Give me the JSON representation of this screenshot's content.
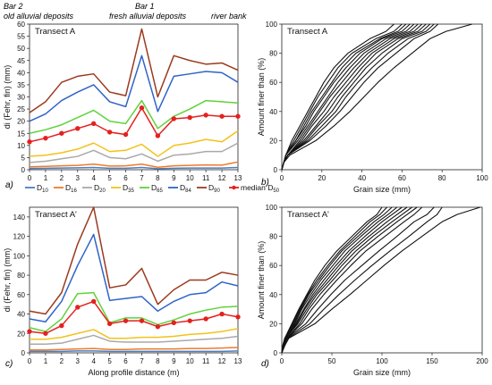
{
  "figure": {
    "header": {
      "bar2": "Bar 2",
      "bar1": "Bar 1",
      "old_deposits": "old alluvial deposits",
      "fresh_deposits": "fresh alluvial deposits",
      "river_bank": "river bank"
    },
    "panel_letters": [
      "a)",
      "b)",
      "c)",
      "d)"
    ]
  },
  "legend": {
    "items": [
      {
        "base": "D",
        "sub": "10",
        "color": "#4a7fc0"
      },
      {
        "base": "D",
        "sub": "16",
        "color": "#f07a2a"
      },
      {
        "base": "D",
        "sub": "20",
        "color": "#a9a9a9"
      },
      {
        "base": "D",
        "sub": "35",
        "color": "#f2c21b"
      },
      {
        "base": "D",
        "sub": "65",
        "color": "#5fd23a"
      },
      {
        "base": "D",
        "sub": "84",
        "color": "#2f64c8"
      },
      {
        "base": "D",
        "sub": "90",
        "color": "#9b3a1e"
      },
      {
        "base": "median D",
        "sub": "50",
        "color": "#e5201f"
      }
    ]
  },
  "chart_data": [
    {
      "type": "line",
      "title": "Transect A",
      "ylabel": "di (Fehr, fin) (mm)",
      "xlabel": "",
      "x": [
        0,
        1,
        2,
        3,
        4,
        5,
        6,
        7,
        8,
        9,
        10,
        11,
        12,
        13
      ],
      "xlim": [
        0,
        13
      ],
      "ylim": [
        0,
        60
      ],
      "yticks": [
        0,
        5,
        10,
        15,
        20,
        25,
        30,
        35,
        40,
        45,
        50,
        55,
        60
      ],
      "series": [
        {
          "name": "D10",
          "color": "#4a7fc0",
          "values": [
            0.5,
            0.6,
            0.7,
            0.8,
            0.9,
            0.6,
            0.6,
            0.9,
            0.4,
            0.6,
            0.7,
            0.7,
            0.7,
            0.9
          ]
        },
        {
          "name": "D16",
          "color": "#f07a2a",
          "values": [
            1.2,
            1.4,
            1.6,
            1.8,
            2.3,
            1.5,
            1.6,
            2.3,
            1.0,
            1.6,
            1.8,
            2.0,
            1.9,
            3.2
          ]
        },
        {
          "name": "D20",
          "color": "#a9a9a9",
          "values": [
            3.0,
            3.5,
            4.5,
            5.5,
            8.0,
            5.0,
            4.5,
            6.5,
            3.5,
            6.0,
            6.5,
            7.5,
            7.5,
            11.0
          ]
        },
        {
          "name": "D35",
          "color": "#f2c21b",
          "values": [
            5.5,
            6.0,
            7.0,
            8.5,
            11.0,
            7.5,
            8.0,
            10.5,
            5.5,
            10.0,
            11.0,
            12.5,
            11.5,
            16.0
          ]
        },
        {
          "name": "D65",
          "color": "#5fd23a",
          "values": [
            15.0,
            16.5,
            18.5,
            21.5,
            24.5,
            20.0,
            19.0,
            28.5,
            17.0,
            22.0,
            25.0,
            28.5,
            28.0,
            27.5
          ]
        },
        {
          "name": "D84",
          "color": "#2f64c8",
          "values": [
            20.0,
            23.0,
            28.5,
            32.0,
            35.0,
            28.0,
            26.0,
            47.0,
            24.0,
            38.5,
            39.5,
            40.5,
            40.0,
            36.0
          ]
        },
        {
          "name": "D90",
          "color": "#9b3a1e",
          "values": [
            23.5,
            28.0,
            36.0,
            38.5,
            39.5,
            32.0,
            30.5,
            58.0,
            30.0,
            47.0,
            45.0,
            43.5,
            44.0,
            41.0
          ]
        },
        {
          "name": "median D50",
          "color": "#e5201f",
          "markers": true,
          "values": [
            11.5,
            13.0,
            15.0,
            17.0,
            19.0,
            15.5,
            14.5,
            25.5,
            14.0,
            21.0,
            21.5,
            22.5,
            22.0,
            22.0
          ]
        }
      ]
    },
    {
      "type": "line",
      "title": "Transect A",
      "xlabel": "Grain size (mm)",
      "ylabel": "Amount finer than (%)",
      "xlim": [
        0,
        100
      ],
      "ylim": [
        0,
        100
      ],
      "xticks": [
        0,
        20,
        40,
        60,
        80,
        100
      ],
      "yticks": [
        0,
        20,
        40,
        60,
        80,
        100
      ],
      "curves_x_at_y": {
        "y": [
          0,
          5,
          10,
          20,
          30,
          40,
          50,
          60,
          70,
          80,
          90,
          95,
          100
        ],
        "x_at_y": [
          [
            0,
            1,
            2,
            5,
            9,
            13,
            17,
            21,
            26,
            33,
            44,
            52,
            56
          ],
          [
            0,
            1,
            2,
            6,
            10,
            14,
            18,
            23,
            28,
            35,
            47,
            56,
            60
          ],
          [
            0,
            1,
            2,
            7,
            11,
            15,
            20,
            25,
            30,
            37,
            49,
            58,
            62
          ],
          [
            0,
            1,
            2,
            7,
            12,
            16,
            21,
            26,
            32,
            39,
            50,
            60,
            64
          ],
          [
            0,
            1,
            2,
            8,
            13,
            18,
            23,
            28,
            34,
            41,
            52,
            62,
            66
          ],
          [
            0,
            1,
            3,
            9,
            14,
            19,
            24,
            30,
            36,
            43,
            54,
            64,
            68
          ],
          [
            0,
            1,
            3,
            10,
            15,
            21,
            26,
            32,
            38,
            45,
            56,
            66,
            70
          ],
          [
            0,
            1,
            3,
            11,
            17,
            23,
            28,
            34,
            40,
            47,
            58,
            68,
            72
          ],
          [
            0,
            1,
            3,
            12,
            18,
            25,
            30,
            36,
            42,
            50,
            60,
            70,
            74
          ],
          [
            0,
            1,
            3,
            13,
            20,
            27,
            32,
            38,
            45,
            53,
            63,
            72,
            76
          ],
          [
            0,
            1,
            3,
            14,
            22,
            29,
            35,
            41,
            48,
            57,
            66,
            74,
            78
          ],
          [
            0,
            1,
            4,
            17,
            26,
            34,
            41,
            48,
            56,
            65,
            74,
            82,
            95
          ]
        ]
      }
    },
    {
      "type": "line",
      "title": "Transect A'",
      "ylabel": "di (Fehr, fin) (mm)",
      "xlabel": "Along profile distance (m)",
      "x": [
        0,
        1,
        2,
        3,
        4,
        5,
        6,
        7,
        8,
        9,
        10,
        11,
        12,
        13
      ],
      "xlim": [
        0,
        13
      ],
      "ylim": [
        0,
        150
      ],
      "yticks": [
        0,
        20,
        40,
        60,
        80,
        100,
        120,
        140
      ],
      "series": [
        {
          "name": "D10",
          "color": "#4a7fc0",
          "values": [
            1.5,
            1.5,
            1.5,
            2,
            2,
            1.5,
            1.5,
            1.5,
            1.5,
            1.5,
            1.5,
            1.5,
            1.5,
            2
          ]
        },
        {
          "name": "D16",
          "color": "#f07a2a",
          "values": [
            3,
            3,
            3.5,
            4,
            4.5,
            3.5,
            3.5,
            4,
            4,
            4,
            4.5,
            4.5,
            5,
            5.5
          ]
        },
        {
          "name": "D20",
          "color": "#a9a9a9",
          "values": [
            9,
            9,
            10,
            14,
            18,
            12,
            11,
            11,
            11,
            12,
            13,
            14,
            15,
            17
          ]
        },
        {
          "name": "D35",
          "color": "#f2c21b",
          "values": [
            14,
            14,
            16,
            20,
            24,
            15,
            15,
            16,
            16,
            17,
            19,
            20,
            22,
            25
          ]
        },
        {
          "name": "D65",
          "color": "#5fd23a",
          "values": [
            26,
            22,
            35,
            61,
            62,
            31,
            36,
            36,
            29,
            34,
            40,
            44,
            47,
            48
          ]
        },
        {
          "name": "D84",
          "color": "#2f64c8",
          "values": [
            35,
            32,
            53,
            90,
            122,
            54,
            56,
            58,
            43,
            53,
            60,
            62,
            73,
            69
          ]
        },
        {
          "name": "D90",
          "color": "#9b3a1e",
          "values": [
            43,
            40,
            62,
            112,
            150,
            67,
            70,
            87,
            50,
            65,
            75,
            75,
            83,
            80
          ]
        },
        {
          "name": "median D50",
          "color": "#e5201f",
          "markers": true,
          "values": [
            22,
            20,
            28,
            47,
            53,
            30,
            33,
            33,
            27,
            31,
            33,
            35,
            40,
            37
          ]
        }
      ]
    },
    {
      "type": "line",
      "title": "Transect A'",
      "xlabel": "Grain size (mm)",
      "ylabel": "Amount finer than (%)",
      "xlim": [
        0,
        200
      ],
      "ylim": [
        0,
        100
      ],
      "xticks": [
        0,
        50,
        100,
        150,
        200
      ],
      "yticks": [
        0,
        20,
        40,
        60,
        80,
        100
      ],
      "curves_x_at_y": {
        "y": [
          0,
          5,
          10,
          20,
          30,
          40,
          50,
          60,
          70,
          80,
          90,
          95,
          100
        ],
        "x_at_y": [
          [
            0,
            1,
            3,
            10,
            17,
            25,
            33,
            43,
            55,
            70,
            85,
            95,
            100
          ],
          [
            0,
            1,
            3,
            11,
            18,
            26,
            35,
            46,
            58,
            73,
            88,
            98,
            105
          ],
          [
            0,
            1,
            3,
            12,
            19,
            27,
            37,
            48,
            60,
            76,
            92,
            102,
            110
          ],
          [
            0,
            2,
            4,
            13,
            20,
            29,
            39,
            51,
            63,
            79,
            96,
            106,
            115
          ],
          [
            0,
            2,
            4,
            14,
            22,
            31,
            42,
            54,
            67,
            83,
            100,
            110,
            120
          ],
          [
            0,
            2,
            4,
            15,
            23,
            33,
            45,
            57,
            70,
            87,
            105,
            115,
            125
          ],
          [
            0,
            2,
            4,
            16,
            25,
            35,
            48,
            60,
            74,
            91,
            110,
            120,
            130
          ],
          [
            0,
            2,
            5,
            18,
            27,
            38,
            51,
            64,
            78,
            96,
            115,
            125,
            135
          ],
          [
            0,
            2,
            5,
            20,
            30,
            42,
            55,
            69,
            84,
            103,
            122,
            132,
            140
          ],
          [
            0,
            2,
            5,
            24,
            36,
            49,
            63,
            80,
            97,
            115,
            132,
            145,
            152
          ],
          [
            0,
            3,
            6,
            28,
            42,
            57,
            73,
            90,
            108,
            127,
            145,
            155,
            160
          ],
          [
            0,
            3,
            7,
            33,
            50,
            68,
            85,
            102,
            120,
            140,
            160,
            175,
            198
          ]
        ]
      }
    }
  ]
}
